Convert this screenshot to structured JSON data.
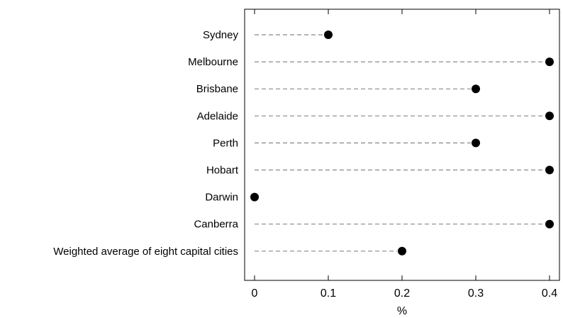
{
  "chart_data": {
    "type": "scatter",
    "style": "dot-plot",
    "categories": [
      "Sydney",
      "Melbourne",
      "Brisbane",
      "Adelaide",
      "Perth",
      "Hobart",
      "Darwin",
      "Canberra",
      "Weighted average of eight capital cities"
    ],
    "values": [
      0.1,
      0.4,
      0.3,
      0.4,
      0.3,
      0.4,
      0.0,
      0.4,
      0.2
    ],
    "xlabel": "%",
    "xlim": [
      0,
      0.4
    ],
    "xticks": [
      "0",
      "0.1",
      "0.2",
      "0.3",
      "0.4"
    ],
    "grid": false,
    "legend": "none",
    "colors": {
      "dot": "#000000",
      "leader": "#888888",
      "frame": "#000000"
    }
  }
}
